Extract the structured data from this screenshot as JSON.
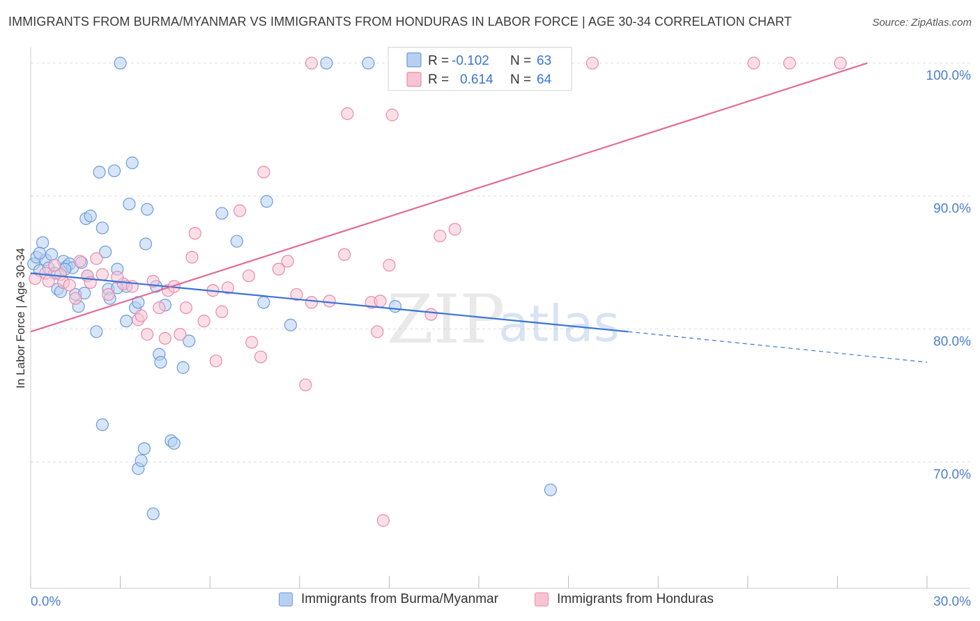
{
  "title": "IMMIGRANTS FROM BURMA/MYANMAR VS IMMIGRANTS FROM HONDURAS IN LABOR FORCE | AGE 30-34 CORRELATION CHART",
  "source": "Source: ZipAtlas.com",
  "watermark": {
    "zip": "ZIP",
    "atlas": "atlas"
  },
  "colors": {
    "burma_fill": "#b7d0f2",
    "burma_stroke": "#6b9bd8",
    "burma_line": "#3a74d6",
    "honduras_fill": "#f8c4d4",
    "honduras_stroke": "#e88aab",
    "honduras_line": "#e26b96",
    "axis_label": "#4a7fcf",
    "grid": "#dddddd"
  },
  "stats": {
    "burma": {
      "r_label": "R =",
      "r_value": "-0.102",
      "n_label": "N =",
      "n_value": "63"
    },
    "honduras": {
      "r_label": "R =",
      "r_value": "0.614",
      "n_label": "N =",
      "n_value": "64"
    }
  },
  "legend": {
    "burma": "Immigrants from Burma/Myanmar",
    "honduras": "Immigrants from Honduras"
  },
  "chart_data": {
    "type": "scatter",
    "ylabel": "In Labor Force | Age 30-34",
    "xlim": [
      0,
      30
    ],
    "ylim": [
      60.5,
      101.5
    ],
    "x_tick_labels": [
      {
        "value": 0,
        "label": "0.0%"
      },
      {
        "value": 30,
        "label": "30.0%"
      }
    ],
    "y_tick_labels": [
      {
        "value": 70,
        "label": "70.0%"
      },
      {
        "value": 80,
        "label": "80.0%"
      },
      {
        "value": 90,
        "label": "90.0%"
      },
      {
        "value": 100,
        "label": "100.0%"
      }
    ],
    "grid": true,
    "legend_position": "bottom",
    "series": [
      {
        "name": "Immigrants from Burma/Myanmar",
        "points": [
          [
            0.1,
            84.9
          ],
          [
            0.2,
            85.4
          ],
          [
            0.3,
            84.4
          ],
          [
            0.4,
            86.5
          ],
          [
            0.5,
            85.2
          ],
          [
            0.6,
            84.6
          ],
          [
            0.7,
            85.6
          ],
          [
            0.8,
            84.2
          ],
          [
            0.9,
            83.0
          ],
          [
            1.0,
            82.8
          ],
          [
            1.1,
            85.1
          ],
          [
            1.2,
            84.7
          ],
          [
            1.3,
            84.9
          ],
          [
            1.4,
            84.6
          ],
          [
            1.5,
            82.6
          ],
          [
            1.6,
            81.7
          ],
          [
            1.7,
            85.0
          ],
          [
            1.8,
            82.7
          ],
          [
            1.9,
            84.0
          ],
          [
            1.85,
            88.3
          ],
          [
            2.0,
            88.5
          ],
          [
            2.2,
            79.8
          ],
          [
            2.3,
            91.8
          ],
          [
            2.4,
            72.8
          ],
          [
            2.4,
            87.6
          ],
          [
            2.5,
            85.8
          ],
          [
            2.6,
            83.0
          ],
          [
            2.65,
            82.3
          ],
          [
            2.8,
            91.9
          ],
          [
            2.9,
            84.5
          ],
          [
            3.0,
            100.0
          ],
          [
            3.2,
            80.6
          ],
          [
            3.2,
            83.2
          ],
          [
            3.3,
            89.4
          ],
          [
            3.4,
            92.5
          ],
          [
            3.5,
            81.6
          ],
          [
            3.6,
            82.0
          ],
          [
            3.6,
            69.5
          ],
          [
            3.7,
            70.1
          ],
          [
            3.8,
            71.0
          ],
          [
            3.85,
            86.4
          ],
          [
            3.9,
            89.0
          ],
          [
            4.1,
            66.1
          ],
          [
            4.2,
            83.2
          ],
          [
            4.3,
            78.1
          ],
          [
            4.35,
            77.5
          ],
          [
            4.5,
            81.8
          ],
          [
            4.7,
            71.6
          ],
          [
            4.8,
            71.4
          ],
          [
            5.1,
            77.1
          ],
          [
            5.3,
            79.1
          ],
          [
            6.4,
            88.7
          ],
          [
            6.9,
            86.6
          ],
          [
            7.8,
            82.0
          ],
          [
            7.9,
            89.6
          ],
          [
            8.7,
            80.3
          ],
          [
            9.9,
            100.0
          ],
          [
            11.3,
            100.0
          ],
          [
            12.2,
            81.7
          ],
          [
            17.4,
            67.9
          ],
          [
            0.3,
            85.7
          ],
          [
            1.15,
            84.5
          ],
          [
            2.9,
            83.1
          ]
        ]
      },
      {
        "name": "Immigrants from Honduras",
        "points": [
          [
            0.15,
            83.8
          ],
          [
            0.5,
            84.2
          ],
          [
            0.6,
            83.6
          ],
          [
            1.0,
            84.1
          ],
          [
            1.1,
            83.5
          ],
          [
            1.3,
            83.3
          ],
          [
            1.5,
            82.3
          ],
          [
            1.65,
            85.1
          ],
          [
            1.9,
            84.0
          ],
          [
            2.0,
            83.5
          ],
          [
            2.2,
            85.3
          ],
          [
            2.4,
            84.1
          ],
          [
            2.6,
            82.6
          ],
          [
            3.1,
            83.4
          ],
          [
            3.4,
            83.2
          ],
          [
            3.6,
            80.7
          ],
          [
            3.7,
            81.0
          ],
          [
            3.9,
            79.6
          ],
          [
            4.1,
            83.6
          ],
          [
            4.3,
            81.6
          ],
          [
            4.5,
            79.3
          ],
          [
            4.6,
            82.9
          ],
          [
            4.8,
            83.2
          ],
          [
            5.0,
            79.6
          ],
          [
            5.2,
            81.6
          ],
          [
            5.4,
            85.4
          ],
          [
            5.5,
            87.2
          ],
          [
            5.8,
            80.6
          ],
          [
            6.1,
            82.9
          ],
          [
            6.2,
            77.6
          ],
          [
            6.4,
            81.3
          ],
          [
            6.6,
            83.1
          ],
          [
            7.0,
            88.9
          ],
          [
            7.3,
            84.0
          ],
          [
            7.4,
            79.0
          ],
          [
            7.7,
            77.9
          ],
          [
            7.8,
            91.8
          ],
          [
            8.3,
            84.5
          ],
          [
            8.6,
            85.1
          ],
          [
            8.9,
            82.6
          ],
          [
            9.2,
            75.8
          ],
          [
            9.4,
            82.0
          ],
          [
            9.4,
            100.0
          ],
          [
            10.0,
            82.1
          ],
          [
            10.5,
            85.6
          ],
          [
            10.6,
            96.2
          ],
          [
            11.4,
            82.0
          ],
          [
            11.6,
            79.8
          ],
          [
            11.7,
            82.1
          ],
          [
            11.8,
            65.6
          ],
          [
            12.0,
            84.8
          ],
          [
            12.1,
            96.1
          ],
          [
            13.4,
            81.1
          ],
          [
            13.7,
            87.0
          ],
          [
            14.2,
            87.5
          ],
          [
            15.6,
            98.4
          ],
          [
            16.0,
            100.0
          ],
          [
            17.1,
            100.0
          ],
          [
            18.8,
            100.0
          ],
          [
            24.2,
            100.0
          ],
          [
            25.4,
            100.0
          ],
          [
            27.1,
            100.0
          ],
          [
            0.8,
            84.8
          ],
          [
            2.9,
            83.9
          ]
        ]
      }
    ],
    "trend_lines": [
      {
        "series": "Immigrants from Burma/Myanmar",
        "x0": 0,
        "y0": 84.2,
        "x1": 20.0,
        "y1": 79.8,
        "dashed_to_x": 30,
        "dashed_to_y": 77.5
      },
      {
        "series": "Immigrants from Honduras",
        "x0": 0,
        "y0": 79.8,
        "x1": 28.0,
        "y1": 100.0
      }
    ]
  }
}
